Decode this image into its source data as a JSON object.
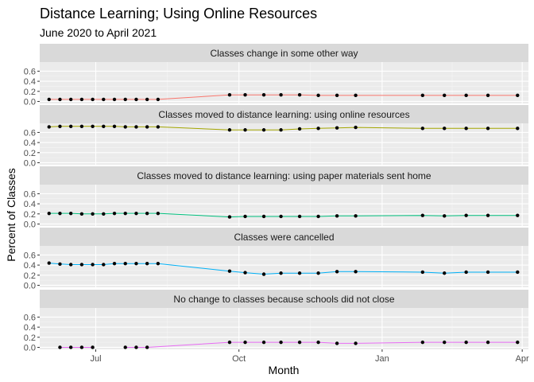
{
  "chart_data": {
    "type": "line",
    "title": "Distance Learning; Using Online Resources",
    "subtitle": "June 2020 to April 2021",
    "xlabel": "Month",
    "ylabel": "Percent of Classes",
    "x_ticks": [
      {
        "label": "Jul",
        "date": "2020-07-01"
      },
      {
        "label": "Oct",
        "date": "2020-10-01"
      },
      {
        "label": "Jan",
        "date": "2021-01-01"
      },
      {
        "label": "Apr",
        "date": "2021-04-01"
      }
    ],
    "y_ticks": [
      "0.0",
      "0.2",
      "0.4",
      "0.6"
    ],
    "ylim": [
      -0.04,
      0.78
    ],
    "xlim": [
      "2020-05-26",
      "2021-04-05"
    ],
    "grid": true,
    "series": [
      {
        "name": "Classes change in some other way",
        "color": "#F8766D",
        "points": [
          [
            "2020-06-01",
            0.04
          ],
          [
            "2020-06-08",
            0.04
          ],
          [
            "2020-06-15",
            0.04
          ],
          [
            "2020-06-22",
            0.04
          ],
          [
            "2020-06-29",
            0.04
          ],
          [
            "2020-07-06",
            0.04
          ],
          [
            "2020-07-13",
            0.04
          ],
          [
            "2020-07-20",
            0.04
          ],
          [
            "2020-07-27",
            0.04
          ],
          [
            "2020-08-03",
            0.04
          ],
          [
            "2020-08-10",
            0.04
          ],
          [
            "2020-09-25",
            0.13
          ],
          [
            "2020-10-05",
            0.13
          ],
          [
            "2020-10-17",
            0.13
          ],
          [
            "2020-10-28",
            0.13
          ],
          [
            "2020-11-09",
            0.13
          ],
          [
            "2020-11-21",
            0.12
          ],
          [
            "2020-12-03",
            0.12
          ],
          [
            "2020-12-15",
            0.12
          ],
          [
            "2021-01-27",
            0.12
          ],
          [
            "2021-02-10",
            0.12
          ],
          [
            "2021-02-24",
            0.12
          ],
          [
            "2021-03-10",
            0.12
          ],
          [
            "2021-03-29",
            0.12
          ]
        ]
      },
      {
        "name": "Classes moved to distance learning: using online resources",
        "color": "#A3A500",
        "points": [
          [
            "2020-06-01",
            0.71
          ],
          [
            "2020-06-08",
            0.72
          ],
          [
            "2020-06-15",
            0.72
          ],
          [
            "2020-06-22",
            0.72
          ],
          [
            "2020-06-29",
            0.72
          ],
          [
            "2020-07-06",
            0.72
          ],
          [
            "2020-07-13",
            0.72
          ],
          [
            "2020-07-20",
            0.71
          ],
          [
            "2020-07-27",
            0.71
          ],
          [
            "2020-08-03",
            0.71
          ],
          [
            "2020-08-10",
            0.71
          ],
          [
            "2020-09-25",
            0.65
          ],
          [
            "2020-10-05",
            0.65
          ],
          [
            "2020-10-17",
            0.65
          ],
          [
            "2020-10-28",
            0.65
          ],
          [
            "2020-11-09",
            0.67
          ],
          [
            "2020-11-21",
            0.68
          ],
          [
            "2020-12-03",
            0.69
          ],
          [
            "2020-12-15",
            0.7
          ],
          [
            "2021-01-27",
            0.68
          ],
          [
            "2021-02-10",
            0.68
          ],
          [
            "2021-02-24",
            0.68
          ],
          [
            "2021-03-10",
            0.68
          ],
          [
            "2021-03-29",
            0.68
          ]
        ]
      },
      {
        "name": "Classes moved to distance learning: using paper materials sent home",
        "color": "#00BF7D",
        "points": [
          [
            "2020-06-01",
            0.21
          ],
          [
            "2020-06-08",
            0.21
          ],
          [
            "2020-06-15",
            0.21
          ],
          [
            "2020-06-22",
            0.2
          ],
          [
            "2020-06-29",
            0.2
          ],
          [
            "2020-07-06",
            0.2
          ],
          [
            "2020-07-13",
            0.21
          ],
          [
            "2020-07-20",
            0.21
          ],
          [
            "2020-07-27",
            0.21
          ],
          [
            "2020-08-03",
            0.21
          ],
          [
            "2020-08-10",
            0.21
          ],
          [
            "2020-09-25",
            0.14
          ],
          [
            "2020-10-05",
            0.15
          ],
          [
            "2020-10-17",
            0.15
          ],
          [
            "2020-10-28",
            0.15
          ],
          [
            "2020-11-09",
            0.15
          ],
          [
            "2020-11-21",
            0.15
          ],
          [
            "2020-12-03",
            0.16
          ],
          [
            "2020-12-15",
            0.16
          ],
          [
            "2021-01-27",
            0.17
          ],
          [
            "2021-02-10",
            0.16
          ],
          [
            "2021-02-24",
            0.17
          ],
          [
            "2021-03-10",
            0.17
          ],
          [
            "2021-03-29",
            0.17
          ]
        ]
      },
      {
        "name": "Classes were cancelled",
        "color": "#00B0F6",
        "points": [
          [
            "2020-06-01",
            0.44
          ],
          [
            "2020-06-08",
            0.42
          ],
          [
            "2020-06-15",
            0.41
          ],
          [
            "2020-06-22",
            0.41
          ],
          [
            "2020-06-29",
            0.41
          ],
          [
            "2020-07-06",
            0.41
          ],
          [
            "2020-07-13",
            0.43
          ],
          [
            "2020-07-20",
            0.43
          ],
          [
            "2020-07-27",
            0.43
          ],
          [
            "2020-08-03",
            0.43
          ],
          [
            "2020-08-10",
            0.43
          ],
          [
            "2020-09-25",
            0.28
          ],
          [
            "2020-10-05",
            0.25
          ],
          [
            "2020-10-17",
            0.22
          ],
          [
            "2020-10-28",
            0.24
          ],
          [
            "2020-11-09",
            0.24
          ],
          [
            "2020-11-21",
            0.24
          ],
          [
            "2020-12-03",
            0.27
          ],
          [
            "2020-12-15",
            0.27
          ],
          [
            "2021-01-27",
            0.26
          ],
          [
            "2021-02-10",
            0.24
          ],
          [
            "2021-02-24",
            0.26
          ],
          [
            "2021-03-10",
            0.26
          ],
          [
            "2021-03-29",
            0.26
          ]
        ]
      },
      {
        "name": "No change to classes because schools did not close",
        "color": "#E76BF3",
        "points": [
          [
            "2020-06-08",
            0.0
          ],
          [
            "2020-06-15",
            0.0
          ],
          [
            "2020-06-22",
            0.0
          ],
          [
            "2020-06-29",
            0.0
          ],
          [
            "2020-07-20",
            0.0
          ],
          [
            "2020-07-27",
            0.0
          ],
          [
            "2020-08-03",
            0.0
          ],
          [
            "2020-09-25",
            0.1
          ],
          [
            "2020-10-05",
            0.1
          ],
          [
            "2020-10-17",
            0.1
          ],
          [
            "2020-10-28",
            0.1
          ],
          [
            "2020-11-09",
            0.1
          ],
          [
            "2020-11-21",
            0.1
          ],
          [
            "2020-12-03",
            0.08
          ],
          [
            "2020-12-15",
            0.08
          ],
          [
            "2021-01-27",
            0.1
          ],
          [
            "2021-02-10",
            0.1
          ],
          [
            "2021-02-24",
            0.1
          ],
          [
            "2021-03-10",
            0.1
          ],
          [
            "2021-03-29",
            0.1
          ]
        ],
        "segments": [
          [
            0,
            4
          ],
          [
            4,
            20
          ]
        ]
      }
    ]
  }
}
